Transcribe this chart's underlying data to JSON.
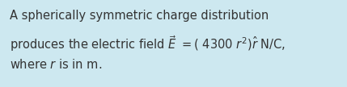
{
  "background_color": "#cde8f0",
  "text_color": "#333333",
  "line1": "A spherically symmetric charge distribution",
  "line2": "produces the electric field $\\vec{E}$ $=($ 4300 $r^2$$)\\hat{r}$ N/C,",
  "line3": "where $r$ is in m.",
  "fontsize": 10.5,
  "fig_width": 4.29,
  "fig_height": 1.08,
  "dpi": 100
}
